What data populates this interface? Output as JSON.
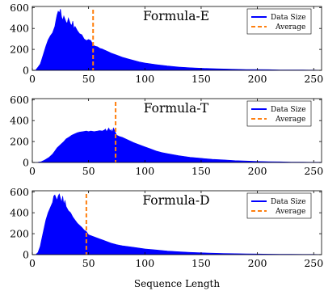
{
  "chart_data": {
    "type": "area",
    "xlabel": "Sequence Length",
    "x_ticks": [
      0,
      50,
      100,
      150,
      200,
      250
    ],
    "y_ticks": [
      0,
      200,
      400,
      600
    ],
    "xlim": [
      0,
      257
    ],
    "ylim": [
      0,
      610
    ],
    "colors": {
      "data": "#0000ff",
      "average": "#ff7f0e"
    },
    "legend_position": "top-right",
    "legend": {
      "data_label": "Data Size",
      "average_label": "Average"
    },
    "panels": [
      {
        "title": "Formula-E",
        "average": 54,
        "series": {
          "name": "Data Size",
          "points": [
            [
              0,
              0
            ],
            [
              2,
              0
            ],
            [
              3,
              3
            ],
            [
              5,
              30
            ],
            [
              7,
              60
            ],
            [
              8,
              90
            ],
            [
              10,
              160
            ],
            [
              12,
              230
            ],
            [
              14,
              290
            ],
            [
              16,
              330
            ],
            [
              18,
              360
            ],
            [
              20,
              420
            ],
            [
              21,
              480
            ],
            [
              22,
              530
            ],
            [
              23,
              565
            ],
            [
              24,
              550
            ],
            [
              25,
              585
            ],
            [
              26,
              510
            ],
            [
              27,
              480
            ],
            [
              28,
              520
            ],
            [
              30,
              460
            ],
            [
              31,
              450
            ],
            [
              32,
              500
            ],
            [
              33,
              470
            ],
            [
              34,
              440
            ],
            [
              35,
              430
            ],
            [
              36,
              470
            ],
            [
              37,
              400
            ],
            [
              38,
              420
            ],
            [
              40,
              380
            ],
            [
              42,
              350
            ],
            [
              44,
              340
            ],
            [
              46,
              300
            ],
            [
              48,
              285
            ],
            [
              50,
              295
            ],
            [
              52,
              285
            ],
            [
              54,
              240
            ],
            [
              56,
              230
            ],
            [
              58,
              225
            ],
            [
              60,
              210
            ],
            [
              62,
              205
            ],
            [
              65,
              190
            ],
            [
              68,
              175
            ],
            [
              70,
              165
            ],
            [
              75,
              145
            ],
            [
              80,
              125
            ],
            [
              85,
              110
            ],
            [
              90,
              95
            ],
            [
              95,
              80
            ],
            [
              100,
              70
            ],
            [
              110,
              55
            ],
            [
              120,
              42
            ],
            [
              130,
              32
            ],
            [
              140,
              25
            ],
            [
              150,
              20
            ],
            [
              160,
              16
            ],
            [
              170,
              13
            ],
            [
              180,
              10
            ],
            [
              190,
              8
            ],
            [
              200,
              7
            ],
            [
              210,
              6
            ],
            [
              220,
              4
            ],
            [
              230,
              3
            ],
            [
              240,
              3
            ],
            [
              250,
              2
            ],
            [
              257,
              1
            ]
          ]
        }
      },
      {
        "title": "Formula-T",
        "average": 74,
        "series": {
          "name": "Data Size",
          "points": [
            [
              0,
              0
            ],
            [
              3,
              0
            ],
            [
              5,
              2
            ],
            [
              8,
              8
            ],
            [
              10,
              18
            ],
            [
              12,
              30
            ],
            [
              15,
              50
            ],
            [
              18,
              80
            ],
            [
              20,
              110
            ],
            [
              22,
              140
            ],
            [
              25,
              170
            ],
            [
              28,
              200
            ],
            [
              30,
              225
            ],
            [
              33,
              245
            ],
            [
              35,
              260
            ],
            [
              38,
              275
            ],
            [
              40,
              285
            ],
            [
              42,
              290
            ],
            [
              45,
              295
            ],
            [
              48,
              300
            ],
            [
              50,
              295
            ],
            [
              52,
              300
            ],
            [
              55,
              295
            ],
            [
              58,
              300
            ],
            [
              60,
              305
            ],
            [
              62,
              300
            ],
            [
              64,
              310
            ],
            [
              65,
              320
            ],
            [
              66,
              295
            ],
            [
              68,
              330
            ],
            [
              69,
              300
            ],
            [
              70,
              315
            ],
            [
              71,
              290
            ],
            [
              72,
              330
            ],
            [
              73,
              310
            ],
            [
              74,
              280
            ],
            [
              75,
              260
            ],
            [
              77,
              250
            ],
            [
              80,
              240
            ],
            [
              85,
              215
            ],
            [
              90,
              190
            ],
            [
              95,
              170
            ],
            [
              100,
              150
            ],
            [
              105,
              130
            ],
            [
              110,
              110
            ],
            [
              115,
              95
            ],
            [
              120,
              85
            ],
            [
              130,
              65
            ],
            [
              140,
              50
            ],
            [
              150,
              40
            ],
            [
              160,
              30
            ],
            [
              170,
              25
            ],
            [
              180,
              18
            ],
            [
              190,
              14
            ],
            [
              200,
              10
            ],
            [
              210,
              8
            ],
            [
              220,
              6
            ],
            [
              230,
              4
            ],
            [
              240,
              3
            ],
            [
              250,
              2
            ],
            [
              257,
              2
            ]
          ]
        }
      },
      {
        "title": "Formula-D",
        "average": 48,
        "series": {
          "name": "Data Size",
          "points": [
            [
              0,
              0
            ],
            [
              3,
              0
            ],
            [
              5,
              20
            ],
            [
              7,
              80
            ],
            [
              8,
              130
            ],
            [
              10,
              230
            ],
            [
              12,
              330
            ],
            [
              14,
              400
            ],
            [
              16,
              450
            ],
            [
              18,
              500
            ],
            [
              19,
              560
            ],
            [
              20,
              570
            ],
            [
              22,
              520
            ],
            [
              23,
              560
            ],
            [
              24,
              580
            ],
            [
              25,
              540
            ],
            [
              26,
              500
            ],
            [
              27,
              560
            ],
            [
              28,
              480
            ],
            [
              29,
              520
            ],
            [
              30,
              460
            ],
            [
              32,
              420
            ],
            [
              34,
              400
            ],
            [
              36,
              360
            ],
            [
              38,
              330
            ],
            [
              40,
              300
            ],
            [
              42,
              280
            ],
            [
              44,
              260
            ],
            [
              46,
              235
            ],
            [
              48,
              220
            ],
            [
              50,
              190
            ],
            [
              55,
              170
            ],
            [
              60,
              150
            ],
            [
              65,
              130
            ],
            [
              70,
              110
            ],
            [
              75,
              95
            ],
            [
              80,
              85
            ],
            [
              90,
              70
            ],
            [
              100,
              55
            ],
            [
              110,
              45
            ],
            [
              120,
              35
            ],
            [
              130,
              28
            ],
            [
              140,
              22
            ],
            [
              150,
              18
            ],
            [
              160,
              14
            ],
            [
              170,
              11
            ],
            [
              180,
              9
            ],
            [
              190,
              7
            ],
            [
              200,
              6
            ],
            [
              210,
              5
            ],
            [
              220,
              4
            ],
            [
              230,
              3
            ],
            [
              240,
              2
            ],
            [
              250,
              2
            ],
            [
              257,
              1
            ]
          ]
        }
      }
    ]
  }
}
